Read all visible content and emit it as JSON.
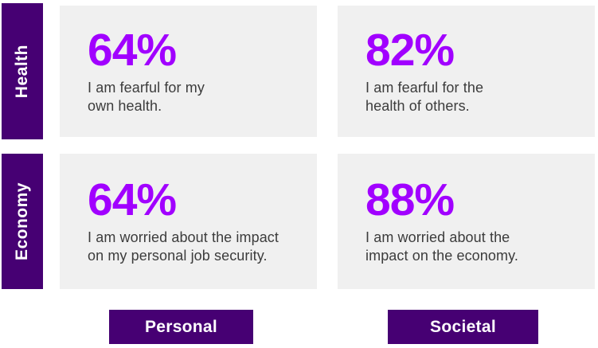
{
  "colors": {
    "accent_purple": "#a100ff",
    "dark_purple": "#460073",
    "card_background": "#f0f0f0",
    "caption_gray": "#3c3c3c",
    "label_text": "#ffffff"
  },
  "rows": [
    {
      "label": "Health",
      "cards": [
        {
          "percent": "64%",
          "line1": "I am fearful for my",
          "line2": "own health."
        },
        {
          "percent": "82%",
          "line1": "I am fearful for the",
          "line2": "health of others."
        }
      ]
    },
    {
      "label": "Economy",
      "cards": [
        {
          "percent": "64%",
          "line1": "I am worried about the impact",
          "line2": "on my personal job security."
        },
        {
          "percent": "88%",
          "line1": "I am worried about the",
          "line2": "impact on the economy."
        }
      ]
    }
  ],
  "columns": [
    {
      "label": "Personal"
    },
    {
      "label": "Societal"
    }
  ],
  "chart_data": {
    "type": "table",
    "title": "",
    "rows": [
      "Health",
      "Economy"
    ],
    "columns": [
      "Personal",
      "Societal"
    ],
    "values": [
      [
        64,
        82
      ],
      [
        64,
        88
      ]
    ],
    "unit": "%",
    "statements": [
      [
        "I am fearful for my own health.",
        "I am fearful for the health of others."
      ],
      [
        "I am worried about the impact on my personal job security.",
        "I am worried about the impact on the economy."
      ]
    ]
  }
}
